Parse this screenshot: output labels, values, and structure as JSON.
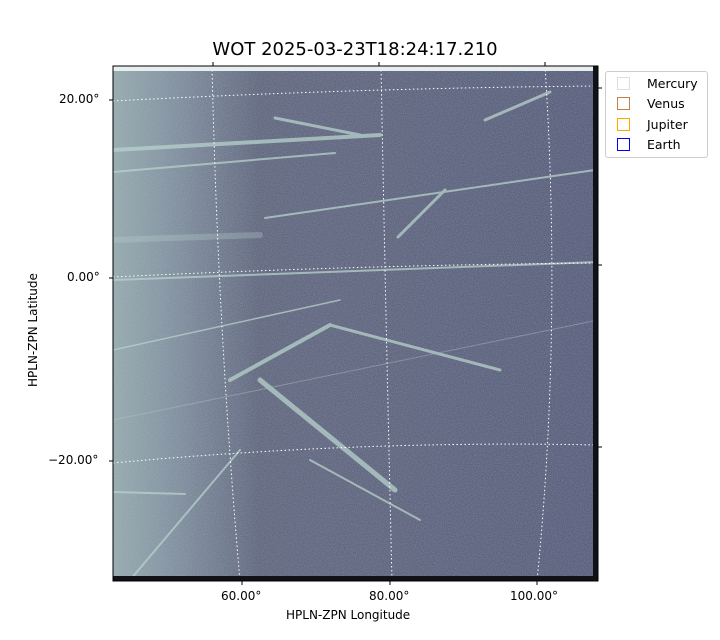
{
  "chart_data": {
    "type": "heatmap",
    "title": "WOT 2025-03-23T18:24:17.210",
    "xlabel": "HPLN-ZPN Longitude",
    "ylabel": "HPLN-ZPN Latitude",
    "x_ticks": [
      "60.00°",
      "80.00°",
      "100.00°"
    ],
    "y_ticks": [
      "20.00°",
      "0.00°",
      "−20.00°"
    ],
    "colormap": "bone",
    "grid": true,
    "legend_placement": "outside-top-right",
    "legend": [
      {
        "name": "Mercury",
        "color": "#dddddd"
      },
      {
        "name": "Venus",
        "color": "#c87d43"
      },
      {
        "name": "Jupiter",
        "color": "#ffa500"
      },
      {
        "name": "Earth",
        "color": "#0000ff"
      }
    ]
  }
}
